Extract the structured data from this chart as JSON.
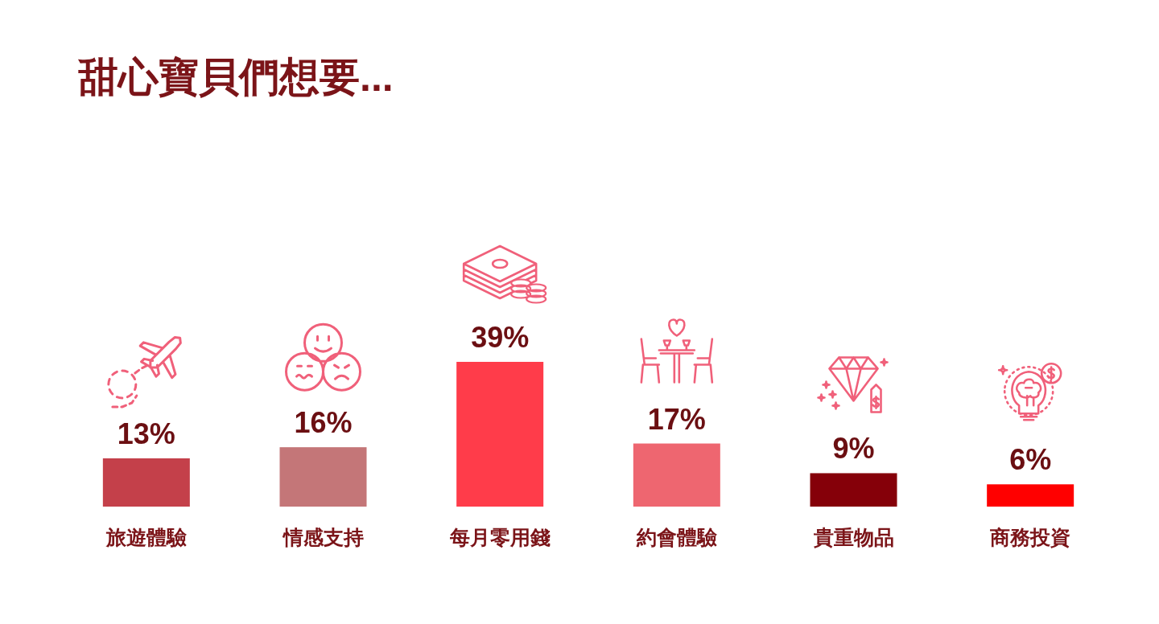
{
  "chart_data": {
    "type": "bar",
    "title": "甜心寶貝們想要...",
    "categories": [
      "旅遊體驗",
      "情感支持",
      "每月零用錢",
      "約會體驗",
      "貴重物品",
      "商務投資"
    ],
    "values": [
      13,
      16,
      39,
      17,
      9,
      6
    ],
    "value_labels": [
      "13%",
      "16%",
      "39%",
      "17%",
      "9%",
      "6%"
    ],
    "colors": [
      "#c4404a",
      "#c47678",
      "#ff3c4a",
      "#ee6670",
      "#850009",
      "#ff0000"
    ],
    "tick_labels": "x"
  }
}
